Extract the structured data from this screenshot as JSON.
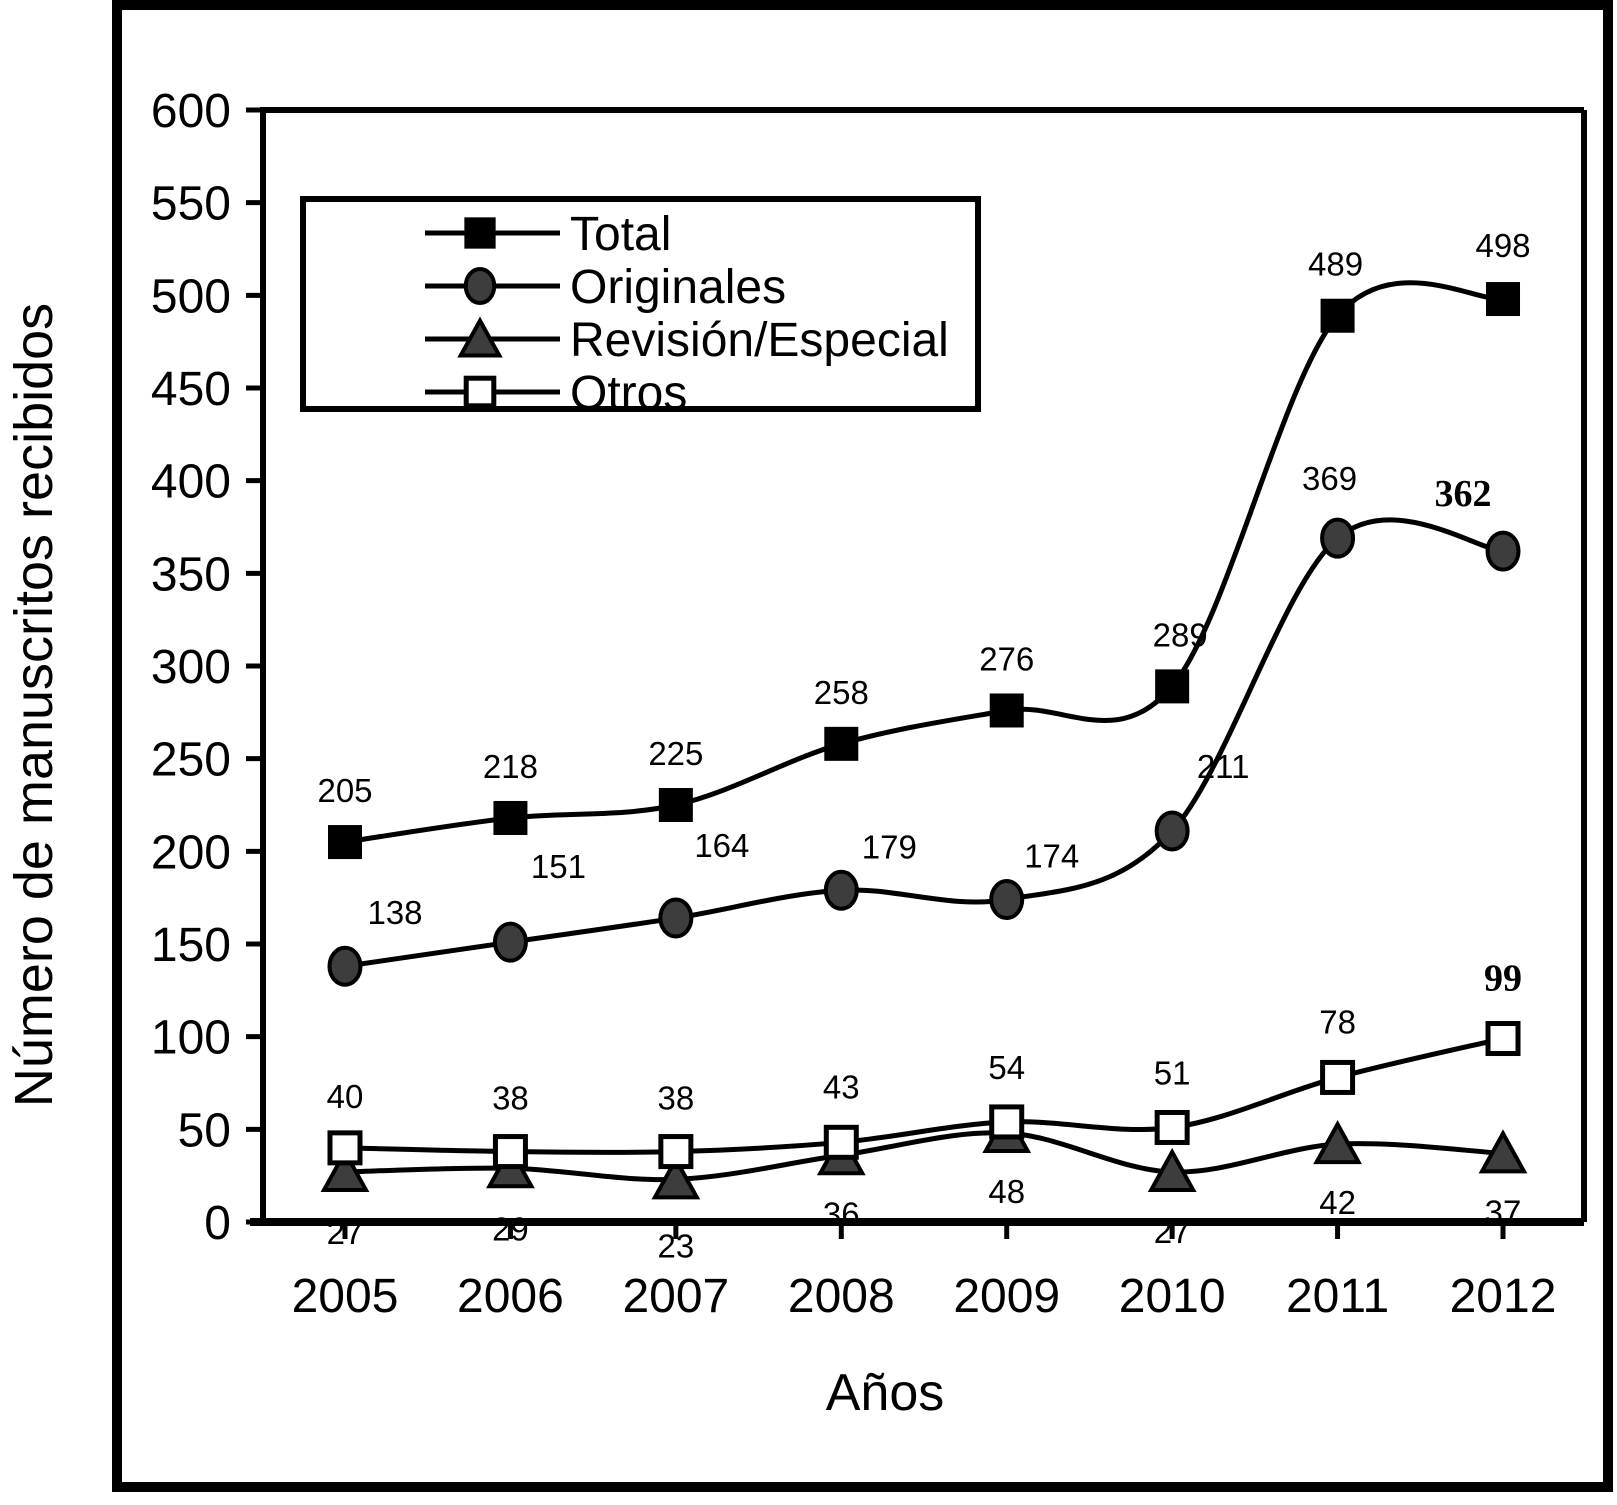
{
  "figure": {
    "description": "Line chart of manuscripts received per year"
  },
  "chart_data": {
    "type": "line",
    "title": "",
    "xlabel": "Años",
    "ylabel": "Número de manuscritos recibidos",
    "categories": [
      "2005",
      "2006",
      "2007",
      "2008",
      "2009",
      "2010",
      "2011",
      "2012"
    ],
    "ylim": [
      0,
      600
    ],
    "ytick_step": 50,
    "yticks": [
      0,
      50,
      100,
      150,
      200,
      250,
      300,
      350,
      400,
      450,
      500,
      550,
      600
    ],
    "grid": false,
    "legend_position": "upper-left-inside",
    "colors": {
      "line": "#000000",
      "dark_fill": "#3d3d3d",
      "open_fill": "#ffffff",
      "text": "#000000",
      "background": "#ffffff"
    },
    "series": [
      {
        "name": "Total",
        "marker": "filled-square",
        "values": [
          205,
          218,
          225,
          258,
          276,
          289,
          489,
          498
        ],
        "labels": [
          {
            "text": "205",
            "dx": 0,
            "dy": -40,
            "bold": false
          },
          {
            "text": "218",
            "dx": 0,
            "dy": -40,
            "bold": false
          },
          {
            "text": "225",
            "dx": 0,
            "dy": -40,
            "bold": false
          },
          {
            "text": "258",
            "dx": 0,
            "dy": -40,
            "bold": false
          },
          {
            "text": "276",
            "dx": 0,
            "dy": -40,
            "bold": false
          },
          {
            "text": "289",
            "dx": 8,
            "dy": -40,
            "bold": false
          },
          {
            "text": "489",
            "dx": -2,
            "dy": -40,
            "bold": false
          },
          {
            "text": "498",
            "dx": 0,
            "dy": -42,
            "bold": false
          }
        ]
      },
      {
        "name": "Originales",
        "marker": "filled-circle",
        "values": [
          138,
          151,
          164,
          179,
          174,
          211,
          369,
          362
        ],
        "labels": [
          {
            "text": "138",
            "dx": 50,
            "dy": -42,
            "bold": false
          },
          {
            "text": "151",
            "dx": 48,
            "dy": -64,
            "bold": false
          },
          {
            "text": "164",
            "dx": 46,
            "dy": -61,
            "bold": false
          },
          {
            "text": "179",
            "dx": 48,
            "dy": -32,
            "bold": false
          },
          {
            "text": "174",
            "dx": 45,
            "dy": -32,
            "bold": false
          },
          {
            "text": "211",
            "dx": 51,
            "dy": -53,
            "bold": false
          },
          {
            "text": "369",
            "dx": -8,
            "dy": -48,
            "bold": false
          },
          {
            "text": "362",
            "dx": -40,
            "dy": -45,
            "bold": true
          }
        ]
      },
      {
        "name": "Revisión/Especial",
        "marker": "filled-triangle",
        "values": [
          27,
          29,
          23,
          36,
          48,
          27,
          42,
          37
        ],
        "labels": [
          {
            "text": "27",
            "dx": 0,
            "dy": 72,
            "bold": false
          },
          {
            "text": "29",
            "dx": 0,
            "dy": 72,
            "bold": false
          },
          {
            "text": "23",
            "dx": 0,
            "dy": 78,
            "bold": false
          },
          {
            "text": "36",
            "dx": 0,
            "dy": 70,
            "bold": false
          },
          {
            "text": "48",
            "dx": 0,
            "dy": 70,
            "bold": false
          },
          {
            "text": "27",
            "dx": 0,
            "dy": 71,
            "bold": false
          },
          {
            "text": "42",
            "dx": 0,
            "dy": 70,
            "bold": false
          },
          {
            "text": "37",
            "dx": 0,
            "dy": 70,
            "bold": false
          }
        ]
      },
      {
        "name": "Otros",
        "marker": "open-square",
        "values": [
          40,
          38,
          38,
          43,
          54,
          51,
          78,
          99
        ],
        "labels": [
          {
            "text": "40",
            "dx": 0,
            "dy": -40,
            "bold": false
          },
          {
            "text": "38",
            "dx": 0,
            "dy": -42,
            "bold": false
          },
          {
            "text": "38",
            "dx": 0,
            "dy": -42,
            "bold": false
          },
          {
            "text": "43",
            "dx": 0,
            "dy": -44,
            "bold": false
          },
          {
            "text": "54",
            "dx": 0,
            "dy": -43,
            "bold": false
          },
          {
            "text": "51",
            "dx": 0,
            "dy": -43,
            "bold": false
          },
          {
            "text": "78",
            "dx": 0,
            "dy": -44,
            "bold": false
          },
          {
            "text": "99",
            "dx": 0,
            "dy": -48,
            "bold": true
          }
        ]
      }
    ]
  }
}
